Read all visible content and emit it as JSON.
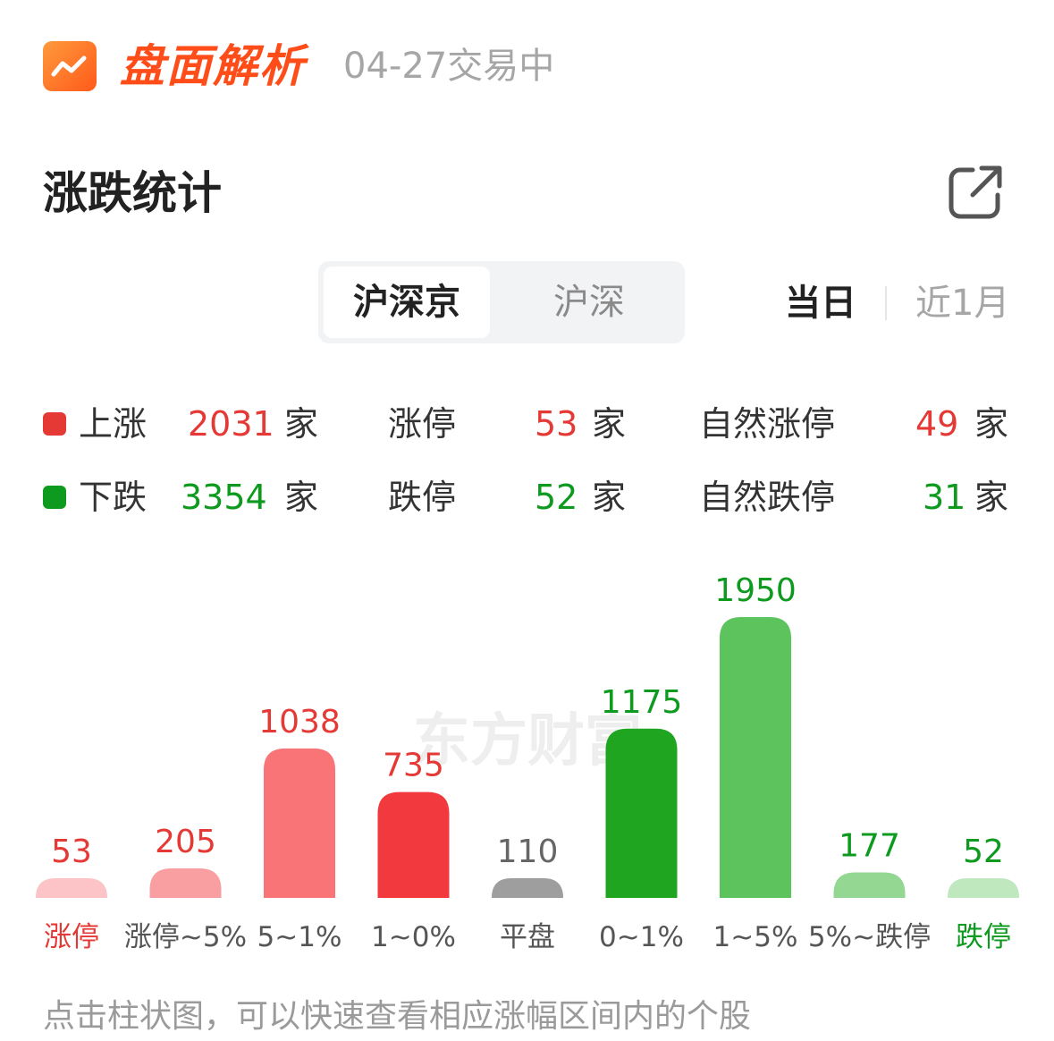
{
  "header": {
    "brand": "盘面解析",
    "date_status": "04-27交易中"
  },
  "section": {
    "title": "涨跌统计"
  },
  "segmented": {
    "options": [
      "沪深京",
      "沪深"
    ],
    "selected": "沪深京"
  },
  "period": {
    "options": [
      "当日",
      "近1月"
    ],
    "selected": "当日"
  },
  "stats": {
    "rise_label": "上涨",
    "rise_count": "2031",
    "limit_up_label": "涨停",
    "limit_up_count": "53",
    "natural_limit_up_label": "自然涨停",
    "natural_limit_up_count": "49",
    "fall_label": "下跌",
    "fall_count": "3354",
    "limit_down_label": "跌停",
    "limit_down_count": "52",
    "natural_limit_down_label": "自然跌停",
    "natural_limit_down_count": "31",
    "unit": "家"
  },
  "colors": {
    "up": "#e53935",
    "down": "#0d9a1e",
    "flat": "#9e9e9e"
  },
  "chart_data": {
    "type": "bar",
    "categories": [
      "涨停",
      "涨停~5%",
      "5~1%",
      "1~0%",
      "平盘",
      "0~1%",
      "1~5%",
      "5%~跌停",
      "跌停"
    ],
    "values": [
      53,
      205,
      1038,
      735,
      110,
      1175,
      1950,
      177,
      52
    ],
    "bar_colors": [
      "#fcc4c6",
      "#f99fa2",
      "#f87477",
      "#f2393d",
      "#9e9e9e",
      "#1fa51f",
      "#5dc35d",
      "#93d793",
      "#bfe8bf"
    ],
    "value_colors": [
      "#e53935",
      "#e53935",
      "#e53935",
      "#e53935",
      "#666666",
      "#0d9a1e",
      "#0d9a1e",
      "#0d9a1e",
      "#0d9a1e"
    ],
    "label_colors": [
      "#e53935",
      "#555555",
      "#555555",
      "#555555",
      "#555555",
      "#555555",
      "#555555",
      "#555555",
      "#0d9a1e"
    ],
    "watermark": "东方财富"
  },
  "footer": {
    "hint": "点击柱状图，可以快速查看相应涨幅区间内的个股"
  }
}
